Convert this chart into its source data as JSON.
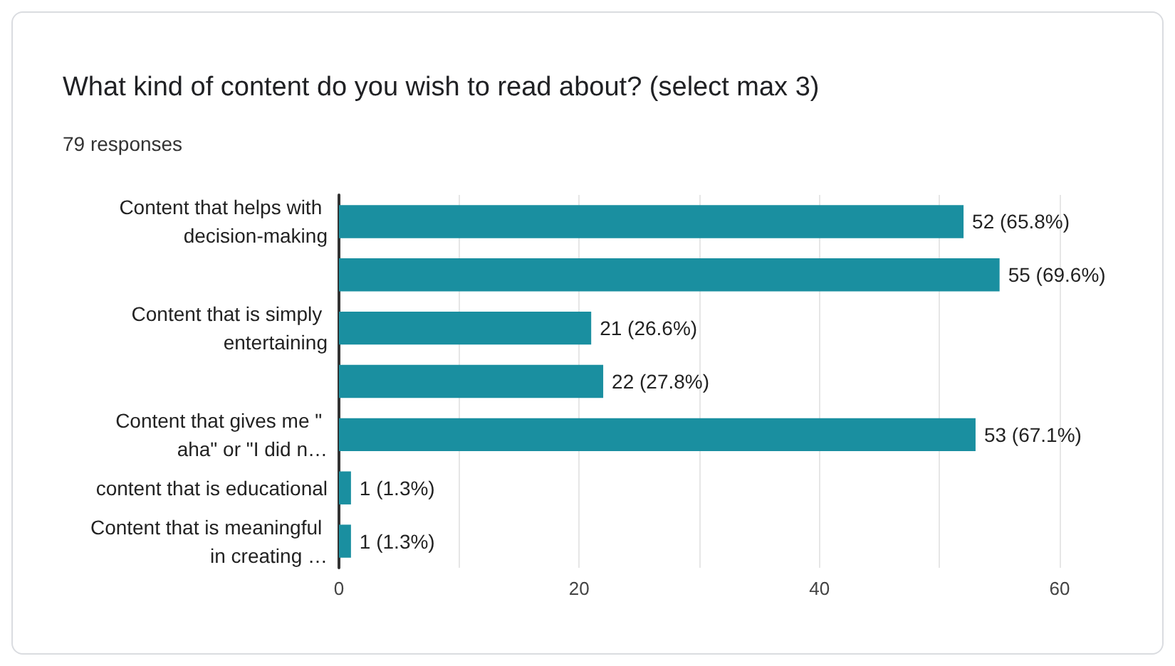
{
  "chart_data": {
    "type": "bar",
    "orientation": "horizontal",
    "title": "What kind of content do you wish to read about? (select max 3)",
    "subtitle": "79 responses",
    "categories": [
      "Content that helps with decision-making",
      null,
      "Content that is simply entertaining",
      null,
      "Content that gives me \" aha\" or \"I did n…",
      "content that is educational",
      "Content that is meaningful in creating …"
    ],
    "values": [
      52,
      55,
      21,
      22,
      53,
      1,
      1
    ],
    "value_labels": [
      "52 (65.8%)",
      "55 (69.6%)",
      "21 (26.6%)",
      "22 (27.8%)",
      "53 (67.1%)",
      "1 (1.3%)",
      "1 (1.3%)"
    ],
    "color": "#1a8fa0",
    "xlim": [
      0,
      60
    ],
    "xticks": [
      0,
      {
        "value": 10,
        "label": null
      },
      20,
      {
        "value": 30,
        "label": null
      },
      40,
      {
        "value": 50,
        "label": null
      },
      60
    ],
    "grid": "x"
  }
}
